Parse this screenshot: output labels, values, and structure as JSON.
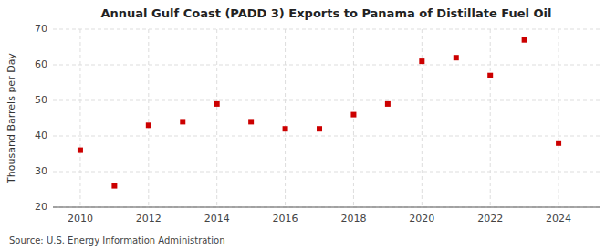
{
  "chart_data": {
    "type": "scatter",
    "title": "Annual Gulf Coast (PADD 3) Exports to Panama of Distillate Fuel Oil",
    "ylabel": "Thousand Barrels per Day",
    "source": "Source: U.S. Energy Information Administration",
    "x": [
      2010,
      2011,
      2012,
      2013,
      2014,
      2015,
      2016,
      2017,
      2018,
      2019,
      2020,
      2021,
      2022,
      2023,
      2024
    ],
    "values": [
      36,
      26,
      43,
      44,
      49,
      44,
      42,
      42,
      46,
      49,
      61,
      62,
      57,
      67,
      38
    ],
    "color": "#cc0000",
    "marker": "square",
    "xlim": [
      2009.2,
      2025.2
    ],
    "xticks": [
      2010,
      2012,
      2014,
      2016,
      2018,
      2020,
      2022,
      2024
    ],
    "ylim": [
      20,
      70
    ],
    "yticks": [
      20,
      30,
      40,
      50,
      60,
      70
    ],
    "grid": true
  }
}
